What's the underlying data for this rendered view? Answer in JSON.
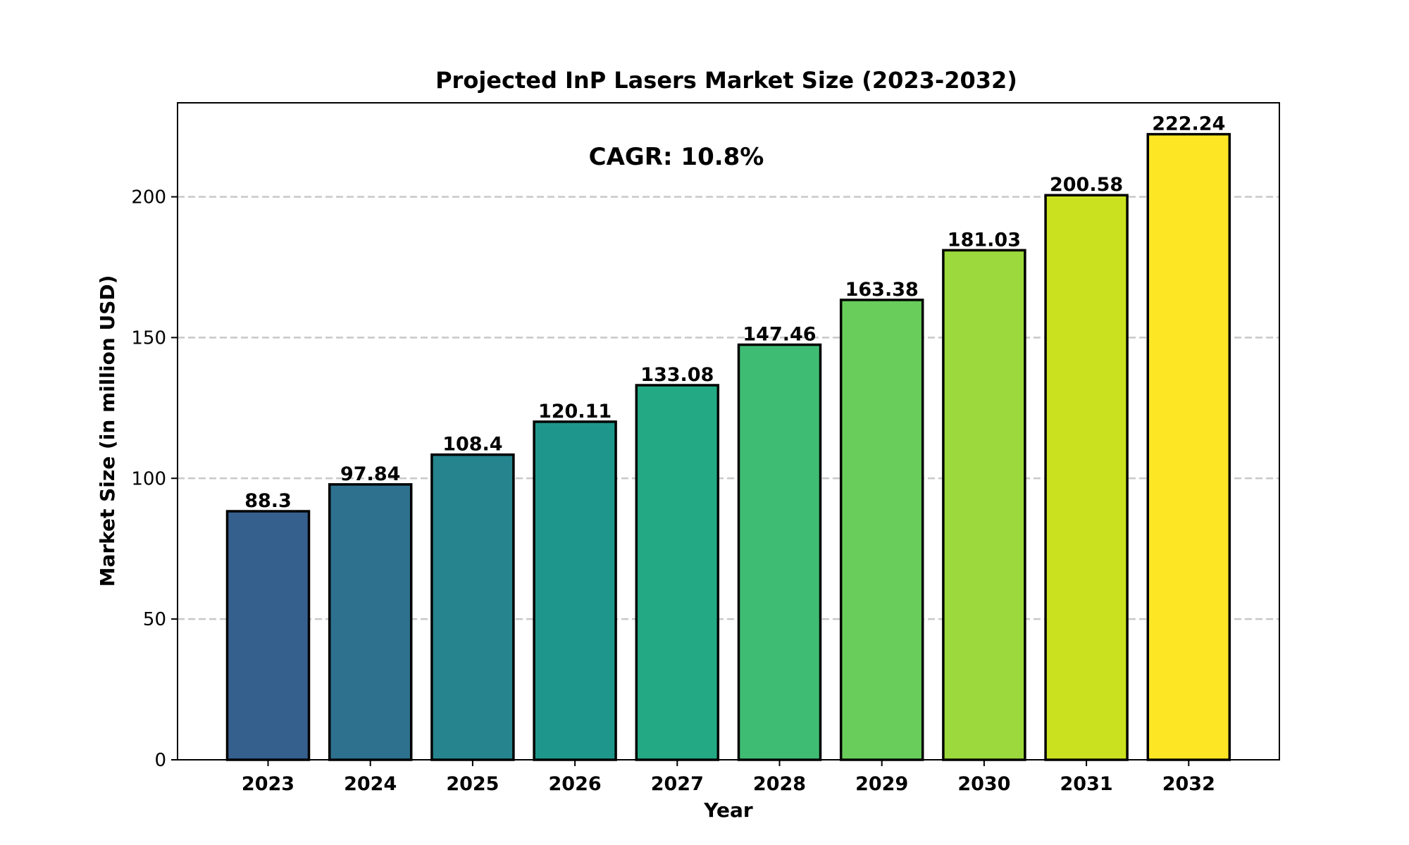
{
  "chart_data": {
    "type": "bar",
    "title": "Projected InP Lasers Market Size (2023-2032)",
    "xlabel": "Year",
    "ylabel": "Market Size (in million USD)",
    "annotation": "CAGR: 10.8%",
    "categories": [
      "2023",
      "2024",
      "2025",
      "2026",
      "2027",
      "2028",
      "2029",
      "2030",
      "2031",
      "2032"
    ],
    "values": [
      88.3,
      97.84,
      108.4,
      120.11,
      133.08,
      147.46,
      163.38,
      181.03,
      200.58,
      222.24
    ],
    "value_labels": [
      "88.3",
      "97.84",
      "108.4",
      "120.11",
      "133.08",
      "147.46",
      "163.38",
      "181.03",
      "200.58",
      "222.24"
    ],
    "colors": [
      "#355f8d",
      "#2d718e",
      "#25848e",
      "#1f968b",
      "#23a983",
      "#3fbc73",
      "#69cd5b",
      "#9bd93c",
      "#cae11f",
      "#fde725"
    ],
    "ylim": [
      0,
      233.4
    ],
    "yticks": [
      0,
      50,
      100,
      150,
      200
    ],
    "ytick_labels": [
      "0",
      "50",
      "100",
      "150",
      "200"
    ],
    "grid": "y, dashed",
    "legend": "none"
  }
}
